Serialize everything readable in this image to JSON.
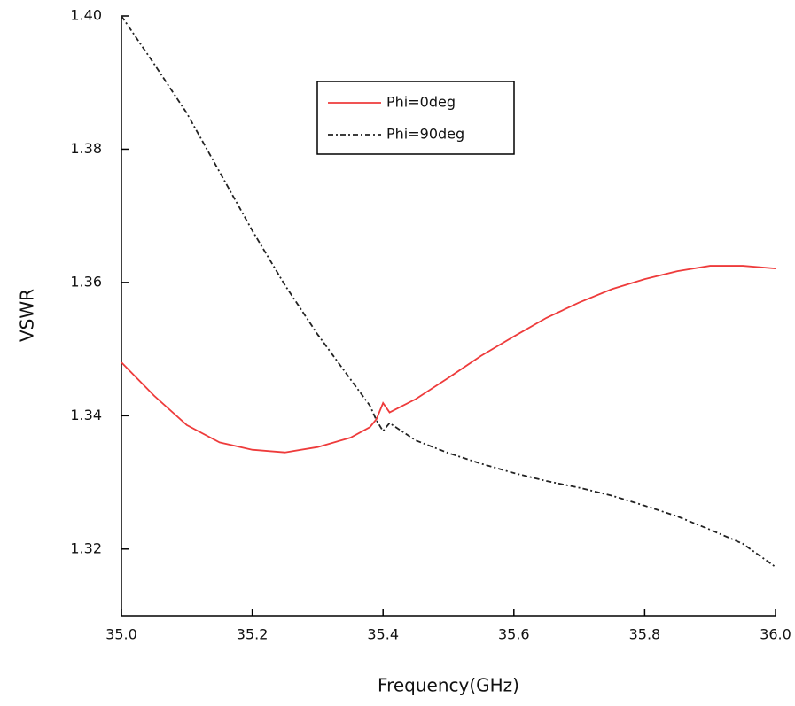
{
  "chart_data": {
    "type": "line",
    "x_label": "Frequency(GHz)",
    "y_label": "VSWR",
    "x": [
      35.0,
      35.05,
      35.1,
      35.15,
      35.2,
      35.25,
      35.3,
      35.35,
      35.38,
      35.39,
      35.4,
      35.41,
      35.45,
      35.5,
      35.55,
      35.6,
      35.65,
      35.7,
      35.75,
      35.8,
      35.85,
      35.9,
      35.95,
      36.0
    ],
    "series": [
      {
        "name": "Phi=0deg",
        "color": "#ee3b3b",
        "dash": "solid",
        "values": [
          1.348,
          1.343,
          1.3386,
          1.336,
          1.3349,
          1.3345,
          1.3353,
          1.3367,
          1.3383,
          1.3395,
          1.3419,
          1.3405,
          1.3425,
          1.3457,
          1.349,
          1.3519,
          1.3547,
          1.357,
          1.359,
          1.3605,
          1.3617,
          1.3625,
          1.3625,
          1.3621
        ]
      },
      {
        "name": "Phi=90deg",
        "color": "#222222",
        "dash": "dashdot",
        "values": [
          1.4,
          1.3928,
          1.3854,
          1.3766,
          1.3678,
          1.3596,
          1.3522,
          1.3455,
          1.3415,
          1.3393,
          1.3377,
          1.3389,
          1.3363,
          1.3344,
          1.3328,
          1.3314,
          1.3302,
          1.3292,
          1.328,
          1.3265,
          1.3249,
          1.3229,
          1.3208,
          1.3173
        ]
      }
    ],
    "xlim": [
      35.0,
      36.0
    ],
    "ylim": [
      1.31,
      1.4
    ],
    "xticks": [
      {
        "value": 35,
        "label": "35.0"
      },
      35.2,
      35.4,
      35.6,
      35.8,
      {
        "value": 36,
        "label": "36.0"
      }
    ],
    "yticks": [
      {
        "value": 1.4,
        "label": "1.40"
      },
      1.38,
      1.36,
      1.34,
      1.32
    ],
    "legend": "upper center"
  }
}
